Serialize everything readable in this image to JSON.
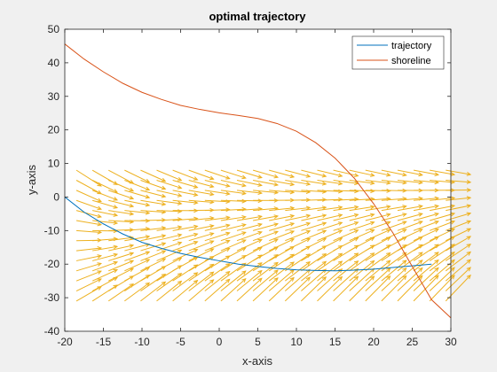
{
  "chart_data": {
    "type": "line",
    "title": "optimal trajectory",
    "xlabel": "x-axis",
    "ylabel": "y-axis",
    "xlim": [
      -20,
      30
    ],
    "ylim": [
      -40,
      50
    ],
    "xticks": [
      -20,
      -15,
      -10,
      -5,
      0,
      5,
      10,
      15,
      20,
      25,
      30
    ],
    "yticks": [
      -40,
      -30,
      -20,
      -10,
      0,
      10,
      20,
      30,
      40,
      50
    ],
    "xtick_labels": [
      "-20",
      "-15",
      "-10",
      "-5",
      "0",
      "5",
      "10",
      "15",
      "20",
      "25",
      "30"
    ],
    "ytick_labels": [
      "-40",
      "-30",
      "-20",
      "-10",
      "0",
      "10",
      "20",
      "30",
      "40",
      "50"
    ],
    "grid": false,
    "legend_position": "top-right",
    "series": [
      {
        "name": "trajectory",
        "color": "#0072bd",
        "x": [
          -20,
          -17.5,
          -15,
          -12.5,
          -10,
          -7.5,
          -5,
          -2.5,
          0,
          2.5,
          5,
          7.5,
          10,
          12.5,
          15,
          17.5,
          20,
          22.5,
          25,
          27.5
        ],
        "y": [
          0,
          -4.5,
          -8,
          -11,
          -13.5,
          -15.3,
          -16.8,
          -18,
          -19,
          -20,
          -20.7,
          -21.3,
          -21.7,
          -21.9,
          -22,
          -21.8,
          -21.5,
          -21,
          -20.5,
          -20
        ]
      },
      {
        "name": "shoreline",
        "color": "#d95319",
        "x": [
          -20,
          -17.5,
          -15,
          -12.5,
          -10,
          -7.5,
          -5,
          -2.5,
          0,
          2.5,
          5,
          7.5,
          10,
          12.5,
          15,
          17.5,
          20,
          22.5,
          25,
          27.5,
          30
        ],
        "y": [
          45.6,
          41.1,
          37.3,
          33.9,
          31.2,
          29.1,
          27.3,
          26.1,
          25.1,
          24.3,
          23.4,
          21.9,
          19.6,
          16.2,
          11.6,
          5.6,
          -2,
          -10.7,
          -20.7,
          -30.6,
          -36
        ]
      }
    ],
    "vector_field": {
      "color": "#edb120",
      "x_start": -18.5,
      "x_step": 2.08,
      "x_count": 24,
      "y_start": -31,
      "y_step": 3.0,
      "y_count": 14,
      "dx": 3.2,
      "slope_ref_y": 0,
      "slope_factor": -0.045
    }
  }
}
